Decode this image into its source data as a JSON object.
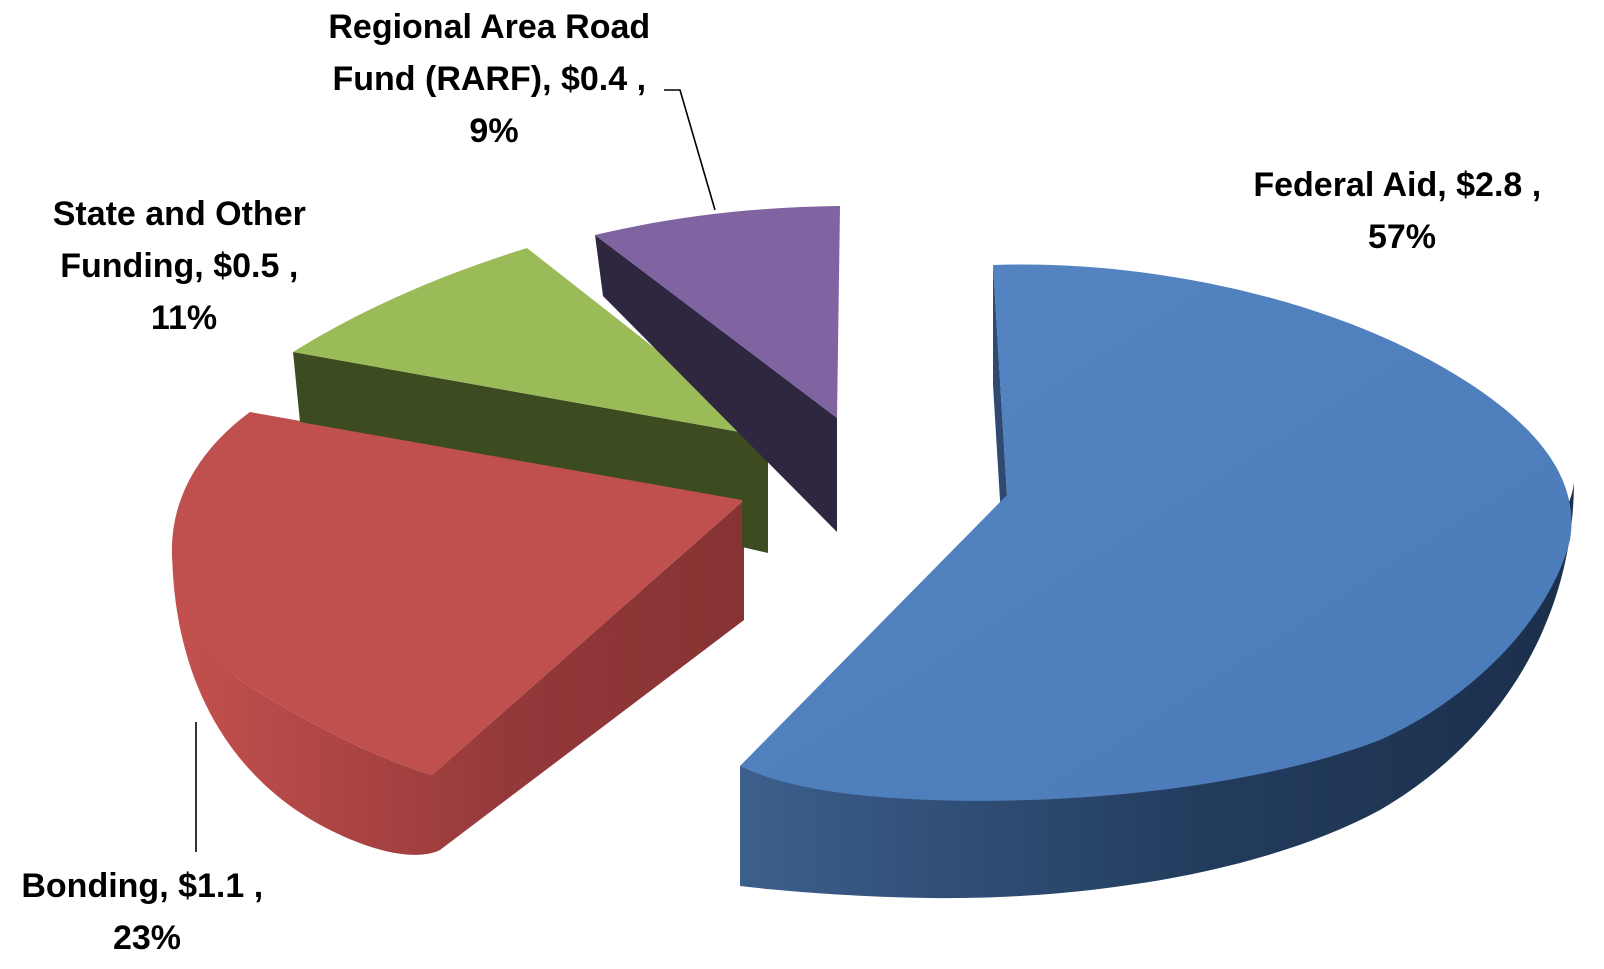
{
  "chart_data": {
    "type": "pie",
    "variant": "3d-exploded",
    "title": "",
    "unit": "$",
    "slices": [
      {
        "name": "Federal Aid",
        "value": 2.8,
        "value_text": "$2.8",
        "percent": 57,
        "percent_text": "57%",
        "color": "#4F81BD",
        "label_lines": [
          "Federal Aid,  $2.8 ,",
          "57%"
        ]
      },
      {
        "name": "Bonding",
        "value": 1.1,
        "value_text": "$1.1",
        "percent": 23,
        "percent_text": "23%",
        "color": "#C0504D",
        "label_lines": [
          "Bonding,  $1.1 ,",
          "23%"
        ]
      },
      {
        "name": "State and Other Funding",
        "value": 0.5,
        "value_text": "$0.5",
        "percent": 11,
        "percent_text": "11%",
        "color": "#9BBB59",
        "label_lines": [
          "State and Other",
          "Funding,  $0.5 ,",
          "11%"
        ]
      },
      {
        "name": "Regional Area Road Fund (RARF)",
        "value": 0.4,
        "value_text": "$0.4",
        "percent": 9,
        "percent_text": "9%",
        "color": "#8064A2",
        "label_lines": [
          "Regional Area Road",
          "Fund (RARF),  $0.4 ,",
          "9%"
        ]
      }
    ]
  }
}
